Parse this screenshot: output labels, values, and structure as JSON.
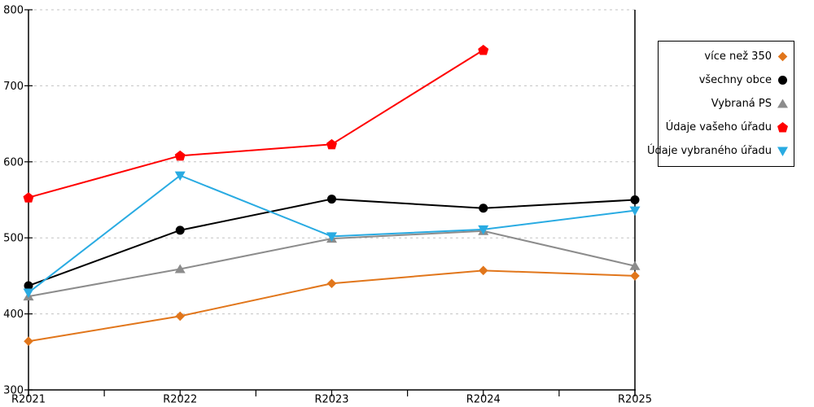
{
  "chart_data": {
    "type": "line",
    "title": "",
    "xlabel": "",
    "ylabel": "",
    "categories": [
      "R2021",
      "R2022",
      "R2023",
      "R2024",
      "R2025"
    ],
    "series": [
      {
        "name": "více než 350",
        "color": "#E1761B",
        "marker": "diamond",
        "values": [
          364,
          397,
          440,
          457,
          450
        ]
      },
      {
        "name": "všechny obce",
        "color": "#000000",
        "marker": "circle",
        "values": [
          437,
          510,
          551,
          539,
          550
        ]
      },
      {
        "name": "Vybraná PS",
        "color": "#8C8C8C",
        "marker": "triangle-up",
        "values": [
          423,
          459,
          499,
          509,
          463
        ]
      },
      {
        "name": "Údaje vašeho úřadu",
        "color": "#FF0000",
        "marker": "pentagon",
        "values": [
          553,
          608,
          623,
          747,
          null
        ]
      },
      {
        "name": "Údaje vybraného úřadu",
        "color": "#29ABE2",
        "marker": "triangle-down",
        "values": [
          428,
          582,
          502,
          511,
          536
        ]
      }
    ],
    "ylim": [
      300,
      800
    ],
    "yticks": [
      300,
      400,
      500,
      600,
      700,
      800
    ],
    "grid": "horizontal-dashed",
    "legend_position": "right"
  },
  "style": {
    "background": "#FFFFFF",
    "axis_color": "#000000",
    "grid_color": "#C3C3C3",
    "line_width": 2
  }
}
